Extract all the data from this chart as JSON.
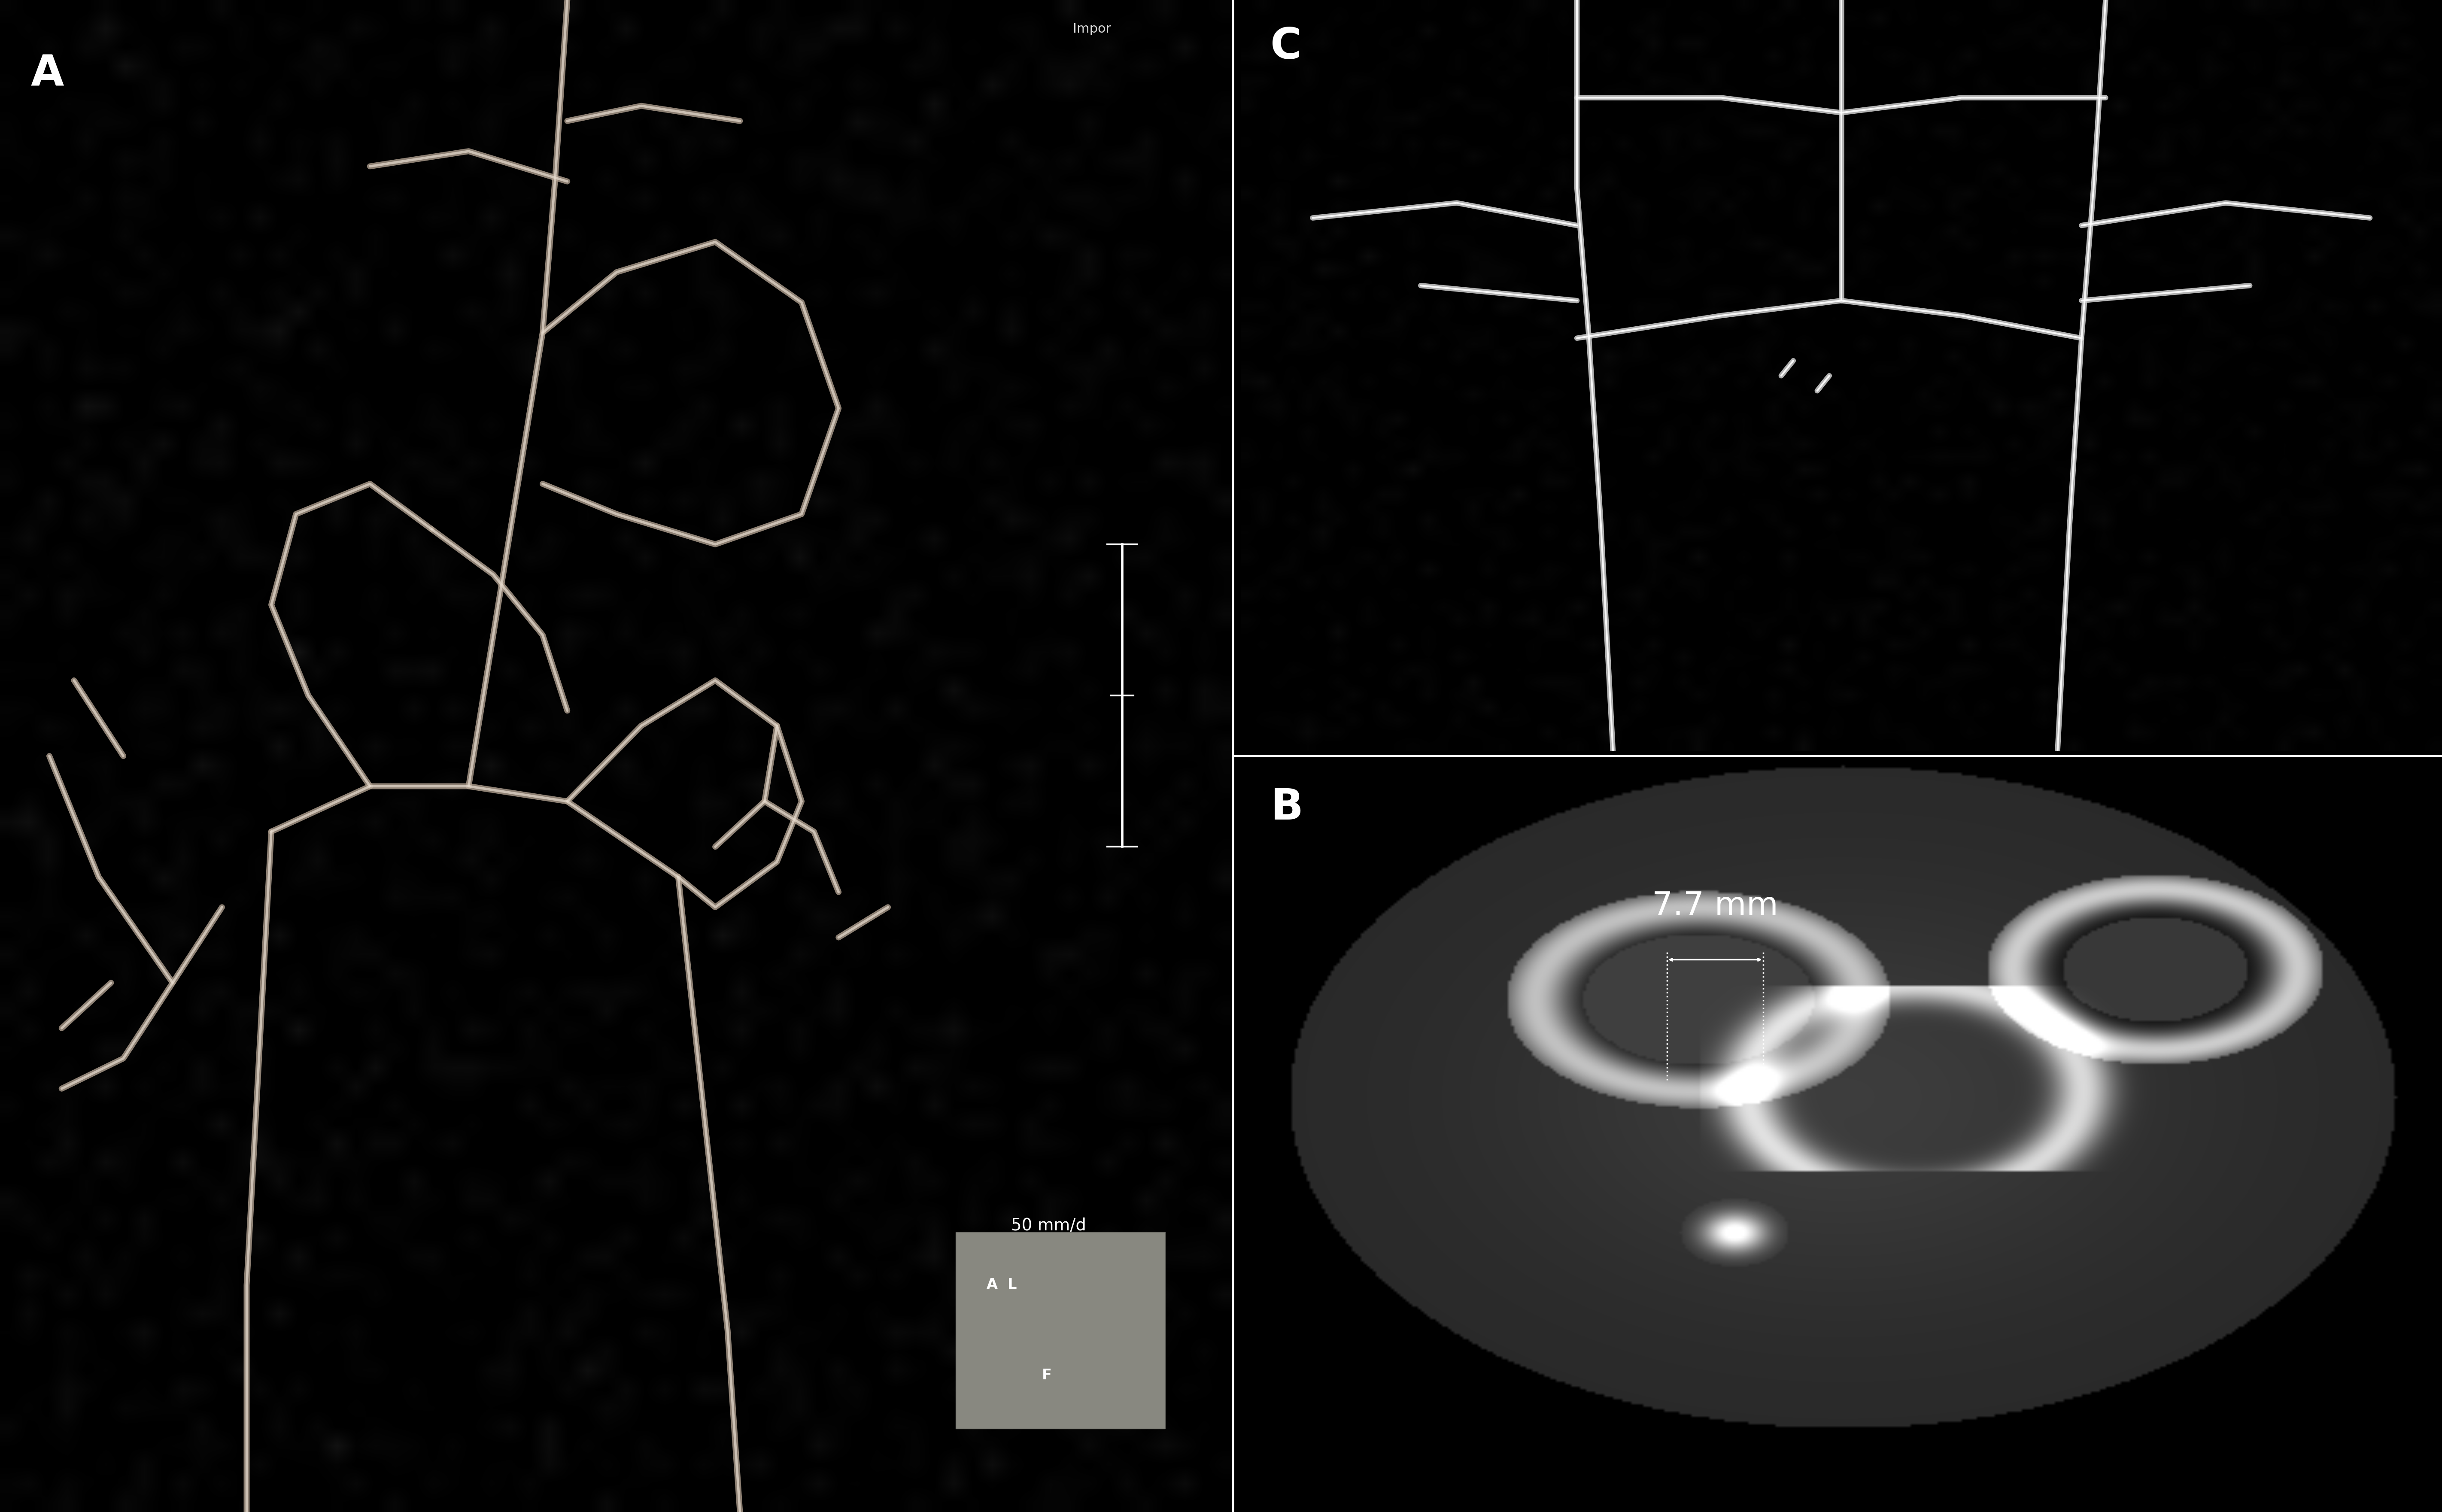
{
  "fig_width": 56.88,
  "fig_height": 35.22,
  "bg_color": "#000000",
  "panel_A": {
    "label": "A",
    "label_color": "#ffffff",
    "label_fontsize": 72
  },
  "panel_B": {
    "label": "B",
    "label_color": "#ffffff",
    "label_fontsize": 72,
    "annotation_text": "7.7 mm",
    "annotation_color": "#ffffff",
    "annotation_fontsize": 55
  },
  "panel_C": {
    "label": "C",
    "label_color": "#ffffff",
    "label_fontsize": 72
  },
  "divider_color": "#ffffff",
  "divider_linewidth": 4,
  "ruler_text": "50 mm/d",
  "watermark_text": "Impor"
}
